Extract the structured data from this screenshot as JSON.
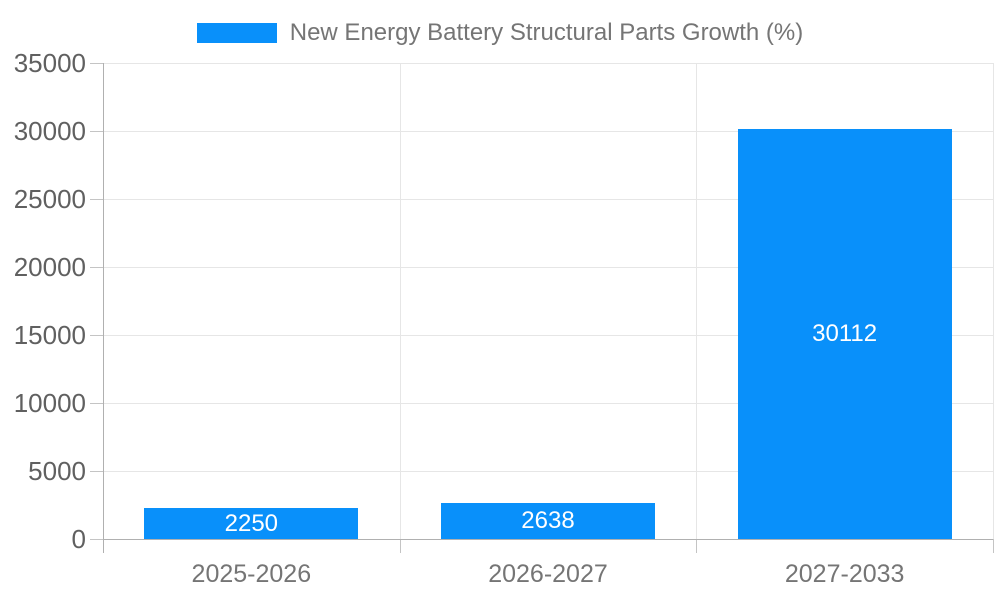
{
  "legend": {
    "label": "New Energy Battery Structural Parts Growth (%)"
  },
  "colors": {
    "bar": "#0990FA",
    "gridline": "#e6e6e6",
    "axis_line": "#b0b0b0",
    "tick": "#c4c4c4",
    "y_tick_label": "#606060",
    "x_tick_label": "#757575",
    "legend_text": "#757575",
    "value_label": "#ffffff",
    "background": "#ffffff"
  },
  "chart_data": {
    "type": "bar",
    "categories": [
      "2025-2026",
      "2026-2027",
      "2027-2033"
    ],
    "values": [
      2250,
      2638,
      30112
    ],
    "series": [
      {
        "name": "New Energy Battery Structural Parts Growth (%)",
        "values": [
          2250,
          2638,
          30112
        ]
      }
    ],
    "title": "New Energy Battery Structural Parts Growth (%)",
    "xlabel": "",
    "ylabel": "",
    "ylim": [
      0,
      35000
    ],
    "yticks": [
      0,
      5000,
      10000,
      15000,
      20000,
      25000,
      30000,
      35000
    ],
    "grid": true,
    "legend_position": "top",
    "bar_color": "#0990FA",
    "value_labels": [
      "2250",
      "2638",
      "30112"
    ],
    "value_labels_position": "inside-center"
  }
}
